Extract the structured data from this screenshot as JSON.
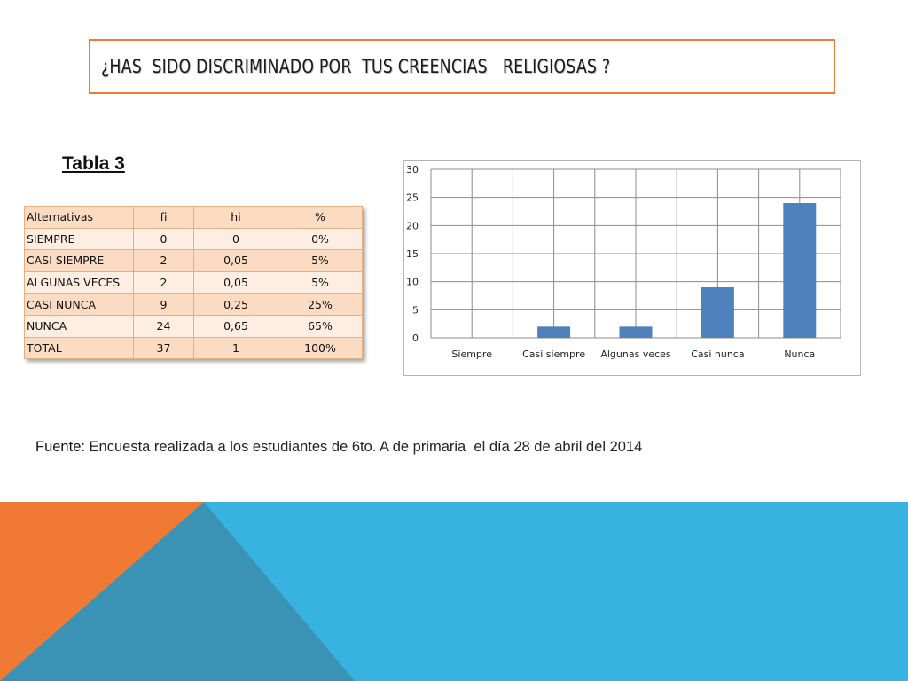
{
  "title": "¿HAS  SIDO DISCRIMINADO POR  TUS CREENCIAS   RELIGIOSAS ?",
  "table_label": "Tabla 3",
  "table": {
    "headers": [
      "Alternativas",
      "fi",
      "hi",
      "%"
    ],
    "rows": [
      [
        "SIEMPRE",
        "0",
        "0",
        "0%"
      ],
      [
        "CASI SIEMPRE",
        "2",
        "0,05",
        "5%"
      ],
      [
        "ALGUNAS VECES",
        "2",
        "0,05",
        "5%"
      ],
      [
        "CASI NUNCA",
        "9",
        "0,25",
        "25%"
      ],
      [
        "NUNCA",
        "24",
        "0,65",
        "65%"
      ],
      [
        "TOTAL",
        "37",
        "1",
        "100%"
      ]
    ]
  },
  "source": {
    "label": "Fuente:",
    "text": " Encuesta realizada a los estudiantes de 6to. A de primaria  el día 28 de abril del 2014"
  },
  "colors": {
    "accent_orange": "#f07a34",
    "accent_blue": "#38b2e0",
    "bar": "#4f81bd"
  },
  "chart_data": {
    "type": "bar",
    "categories": [
      "Siempre",
      "Casi siempre",
      "Algunas veces",
      "Casi nunca",
      "Nunca"
    ],
    "values": [
      0,
      2,
      2,
      9,
      24
    ],
    "ylim": [
      0,
      30
    ],
    "yticks": [
      0,
      5,
      10,
      15,
      20,
      25,
      30
    ],
    "grid": true,
    "legend": "none"
  }
}
